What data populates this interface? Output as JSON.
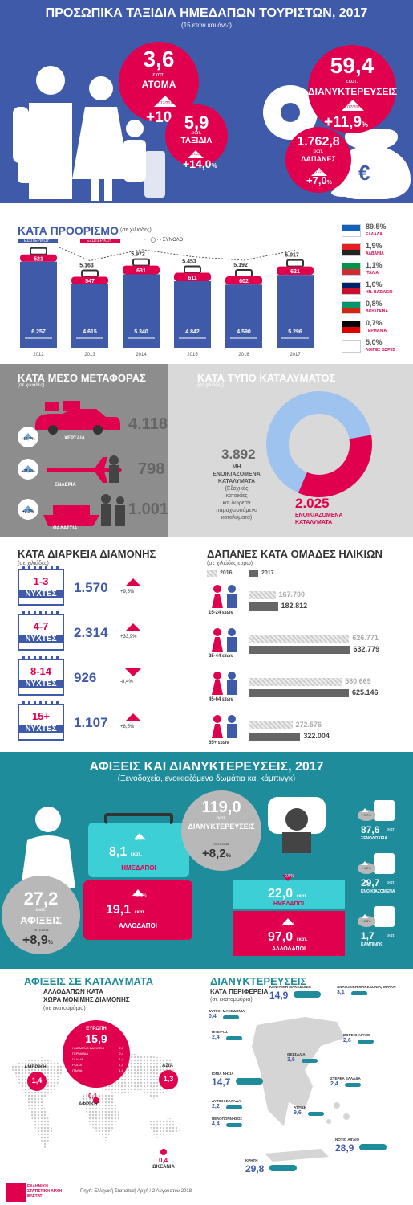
{
  "header": {
    "title": "ΠΡΟΣΩΠΙΚΑ ΤΑΞΙΔΙΑ ΗΜΕΔΑΠΩΝ ΤΟΥΡΙΣΤΩΝ, 2017",
    "subtitle": "(15 ετών και άνω)"
  },
  "hero": {
    "persons": {
      "value": "3,6",
      "unit": "εκατ.",
      "label": "ΑΤΟΜΑ",
      "period": "2017/2016",
      "change": "+10,6",
      "pct": "%"
    },
    "trips": {
      "value": "5,9",
      "unit": "εκατ.",
      "label": "ΤΑΞΙΔΙΑ",
      "period": "2017/2016",
      "change": "+14,0",
      "pct": "%"
    },
    "nights": {
      "value": "59,4",
      "unit": "εκατ.",
      "label": "ΔΙΑΝΥΚΤΕΡΕΥΣΕΙΣ",
      "period": "2017/2016",
      "change": "+11,9",
      "pct": "%"
    },
    "spending": {
      "value": "1.762,8",
      "unit": "εκατ.",
      "label": "ΔΑΠΑΝΕΣ",
      "period": "2017/2016",
      "change": "+7,0",
      "pct": "%"
    },
    "euro": "€"
  },
  "destination": {
    "title": "ΚΑΤΑ ΠΡΟΟΡΙΣΜΟ",
    "note": "(σε χιλιάδες)",
    "legend": {
      "domestic": "ΕΣΩΤΕΡΙΚΟΥ",
      "abroad": "ΕΞΩΤΕΡΙΚΟΥ",
      "total": "ΣΥΝΟΛΟ"
    },
    "colors": {
      "domestic": "#3f5aa9",
      "abroad": "#e0004d"
    },
    "countries": [
      {
        "pct": "89,5",
        "sym": "%",
        "name": "ΕΛΛΑΔΑ"
      },
      {
        "pct": "1,9",
        "sym": "%",
        "name": "ΑΛΒΑΝΙΑ"
      },
      {
        "pct": "1,1",
        "sym": "%",
        "name": "ΙΤΑΛΙΑ"
      },
      {
        "pct": "1,0",
        "sym": "%",
        "name": "ΗΝ. ΒΑΣΙΛΕΙΟ"
      },
      {
        "pct": "0,8",
        "sym": "%",
        "name": "ΒΟΥΛΓΑΡΙΑ"
      },
      {
        "pct": "0,7",
        "sym": "%",
        "name": "ΓΕΡΜΑΝΙΑ"
      },
      {
        "pct": "5,0",
        "sym": "%",
        "name": "ΛΟΙΠΕΣ ΧΩΡΕΣ"
      }
    ]
  },
  "chart_data": {
    "type": "bar",
    "categories": [
      "2012",
      "2013",
      "2014",
      "2015",
      "2016",
      "2017"
    ],
    "series": [
      {
        "name": "ΕΣΩΤΕΡΙΚΟΥ",
        "values": [
          6257,
          4615,
          5340,
          4842,
          4590,
          5296
        ],
        "labels": [
          "6.257",
          "4.615",
          "5.340",
          "4.842",
          "4.590",
          "5.296"
        ]
      },
      {
        "name": "ΕΞΩΤΕΡΙΚΟΥ",
        "values": [
          521,
          547,
          631,
          611,
          602,
          621
        ],
        "labels": [
          "521",
          "547",
          "631",
          "611",
          "602",
          "621"
        ]
      },
      {
        "name": "ΣΥΝΟΛΟ",
        "values": [
          6778,
          5163,
          5972,
          5453,
          5192,
          5917
        ],
        "labels": [
          "6.778",
          "5.163",
          "5.972",
          "5.453",
          "5.192",
          "5.917"
        ]
      }
    ]
  },
  "transport": {
    "title": "ΚΑΤΑ ΜΕΣΟ ΜΕΤΑΦΟΡΑΣ",
    "note": "(σε χιλιάδες)",
    "items": [
      {
        "change": "+15,7",
        "sym": "%",
        "value": "4.118",
        "label": "ΧΕΡΣΑΙΑ"
      },
      {
        "change": "+21,6",
        "sym": "%",
        "value": "798",
        "label": "ΕΝΑΕΡΙΑ"
      },
      {
        "change": "+2,3",
        "sym": "%",
        "value": "1.001",
        "label": "ΘΑΛΑΣΣΙΑ"
      }
    ]
  },
  "accommodation": {
    "title": "ΚΑΤΑ ΤΥΠΟ ΚΑΤΑΛΥΜΑΤΟΣ",
    "note": "(σε χιλιάδες)",
    "nonrented": {
      "value": "3.892",
      "label1": "ΜΗ",
      "label2": "ΕΝΟΙΚΙΑΖΟΜΕΝΑ",
      "label3": "ΚΑΤΑΛΥΜΑΤΑ",
      "sub1": "(Εξοχικές",
      "sub2": "κατοικίες",
      "sub3": "και δωρεάν",
      "sub4": "παραχωρούμενα",
      "sub5": "καταλύματα)"
    },
    "rented": {
      "value": "2.025",
      "label1": "ΕΝΟΙΚΙΑΖΟΜΕΝΑ",
      "label2": "ΚΑΤΑΛΥΜΑΤΑ"
    }
  },
  "duration": {
    "title": "ΚΑΤΑ ΔΙΑΡΚΕΙΑ ΔΙΑΜΟΝΗΣ",
    "note": "(σε χιλιάδες)",
    "items": [
      {
        "range": "1-3",
        "unit": "ΝΥΧΤΕΣ",
        "value": "1.570",
        "change": "+9,5",
        "sym": "%",
        "dir": "up"
      },
      {
        "range": "4-7",
        "unit": "ΝΥΧΤΕΣ",
        "value": "2.314",
        "change": "+33,9",
        "sym": "%",
        "dir": "up"
      },
      {
        "range": "8-14",
        "unit": "ΝΥΧΤΕΣ",
        "value": "926",
        "change": "-8,4",
        "sym": "%",
        "dir": "down"
      },
      {
        "range": "15+",
        "unit": "ΝΥΧΤΕΣ",
        "value": "1.107",
        "change": "+8,5",
        "sym": "%",
        "dir": "up"
      }
    ]
  },
  "age_spending": {
    "title": "ΔΑΠΑΝΕΣ ΚΑΤΑ ΟΜΑΔΕΣ ΗΛΙΚΙΩΝ",
    "note": "(σε χιλιάδες ευρώ)",
    "legend": {
      "y2016": "2016",
      "y2017": "2017"
    },
    "groups": [
      {
        "age": "15-24",
        "unit": "ετών",
        "v2016": 167700,
        "l2016": "167.700",
        "v2017": 182812,
        "l2017": "182.812"
      },
      {
        "age": "25-44",
        "unit": "ετών",
        "v2016": 626771,
        "l2016": "626.771",
        "v2017": 632779,
        "l2017": "632.779"
      },
      {
        "age": "45-64",
        "unit": "ετών",
        "v2016": 580669,
        "l2016": "580.669",
        "v2017": 625146,
        "l2017": "625.146"
      },
      {
        "age": "65+",
        "unit": "ετών",
        "v2016": 272576,
        "l2016": "272.576",
        "v2017": 322004,
        "l2017": "322.004"
      }
    ]
  },
  "arrivals": {
    "title": "ΑΦΙΞΕΙΣ ΚΑΙ ΔΙΑΝΥΚΤΕΡΕΥΣΕΙΣ, 2017",
    "subtitle": "(Ξενοδοχεία, ενοικιαζόμενα δωμάτια και κάμπινγκ)",
    "total": {
      "value": "27,2",
      "unit": "εκατ.",
      "label": "ΑΦΙΞΕΙΣ",
      "period": "2017/2016",
      "change": "+8,9",
      "sym": "%"
    },
    "domestic": {
      "value": "8,1",
      "unit": "εκατ.",
      "label": "ΗΜΕΔΑΠΟΙ",
      "change": "+2,2",
      "sym": "%"
    },
    "foreign": {
      "value": "19,1",
      "unit": "εκατ.",
      "label": "ΑΛΛΟΔΑΠΟΙ",
      "change": "+12,3",
      "sym": "%"
    },
    "nights": {
      "value": "119,0",
      "unit": "εκατ.",
      "label": "ΔΙΑΝΥΚΤΕΡΕΥΣΕΙΣ",
      "period": "2017/2016",
      "change": "+8,2",
      "sym": "%"
    },
    "nights_dom": {
      "value": "22,0",
      "unit": "εκατ.",
      "label": "ΗΜΕΔΑΠΟΙ",
      "change": "-0,5",
      "sym": "%"
    },
    "nights_for": {
      "value": "97,0",
      "unit": "εκατ.",
      "label": "ΑΛΛΟΔΑΠΟΙ",
      "change": "10,4",
      "sym": "%"
    },
    "types": [
      {
        "change": "+9,7",
        "sym": "%",
        "value": "87,6",
        "unit": "εκατ.",
        "label": "ΞΕΝΟΔΟΧΕΙΑ"
      },
      {
        "change": "+4,2",
        "sym": "%",
        "value": "29,7",
        "unit": "εκατ.",
        "label": "ΕΝΟΙΚΙΑΖΟΜΕΝΑ"
      },
      {
        "change": "+3,3",
        "sym": "%",
        "value": "1,7",
        "unit": "εκατ.",
        "label": "ΚΑΜΠΙΝΓΚ"
      }
    ]
  },
  "world": {
    "title": "ΑΦΙΞΕΙΣ ΣΕ ΚΑΤΑΛΥΜΑΤΑ",
    "sub1": "ΑΛΛΟΔΑΠΩΝ ΚΑΤΑ",
    "sub2": "ΧΩΡΑ ΜΟΝΙΜΗΣ ΔΙΑΜΟΝΗΣ",
    "note": "(σε εκατομμύρια)",
    "europe": {
      "name": "ΕΥΡΩΠΗ",
      "value": "15,9",
      "rows": [
        [
          "ΗΝΩΜΕΝΟ ΒΑΣΙΛΕΙΟ",
          "2,8"
        ],
        [
          "ΓΕΡΜΑΝΙΑ",
          "2,4"
        ],
        [
          "ΓΑΛΛΙΑ",
          "1,4"
        ],
        [
          "ΡΩΣΙΑ",
          "1,0"
        ],
        [
          "ΙΤΑΛΙΑ",
          "1,0"
        ]
      ]
    },
    "america": {
      "name": "ΑΜΕΡΙΚΗ",
      "value": "1,4"
    },
    "asia": {
      "name": "ΑΣΙΑ",
      "value": "1,3"
    },
    "africa": {
      "name": "ΑΦΡΙΚΗ",
      "value": "0,1"
    },
    "oceania": {
      "name": "ΩΚΕΑΝΙΑ",
      "value": "0,4"
    }
  },
  "regions": {
    "title": "ΔΙΑΝΥΚΤΕΡΕΥΣΕΙΣ",
    "sub": "ΚΑΤΑ ΠΕΡΙΦΕΡΕΙΑ",
    "note": "(σε εκατομμύρια)",
    "items": [
      {
        "name": "ΚΕΝΤΡΙΚΗ ΜΑΚΕΔΟΝΙΑ",
        "value": "14,9"
      },
      {
        "name": "ΑΝΑΤΟΛΙΚΗ ΜΑΚΕΔΟΝΙΑ, ΘΡΑΚΗ",
        "value": "3,1"
      },
      {
        "name": "ΔΥΤΙΚΗ ΜΑΚΕΔΟΝΙΑ",
        "value": "0,4"
      },
      {
        "name": "ΗΠΕΙΡΟΣ",
        "value": "2,4"
      },
      {
        "name": "ΘΕΣΣΑΛΙΑ",
        "value": "3,6"
      },
      {
        "name": "ΒΟΡΕΙΟ ΑΙΓΑΙΟ",
        "value": "2,6"
      },
      {
        "name": "ΙΟΝΙΑ ΝΗΣΙΑ",
        "value": "14,7"
      },
      {
        "name": "ΣΤΕΡΕΑ ΕΛΛΑΔΑ",
        "value": "2,4"
      },
      {
        "name": "ΔΥΤΙΚΗ ΕΛΛΑΔΑ",
        "value": "2,2"
      },
      {
        "name": "ΑΤΤΙΚΗ",
        "value": "9,6"
      },
      {
        "name": "ΠΕΛΟΠΟΝΝΗΣΟΣ",
        "value": "4,4"
      },
      {
        "name": "ΝΟΤΙΟ ΑΙΓΑΙΟ",
        "value": "28,9"
      },
      {
        "name": "ΚΡΗΤΗ",
        "value": "29,8"
      }
    ]
  },
  "footer": {
    "logo1": "ΕΛΛΗΝΙΚΗ",
    "logo2": "ΣΤΑΤΙΣΤΙΚΗ ΑΡΧΗ",
    "logo3": "ΕΛΣΤΑΤ",
    "source": "Πηγή: Ελληνική Στατιστική Αρχή  /  2 Αυγούστου 2018"
  }
}
